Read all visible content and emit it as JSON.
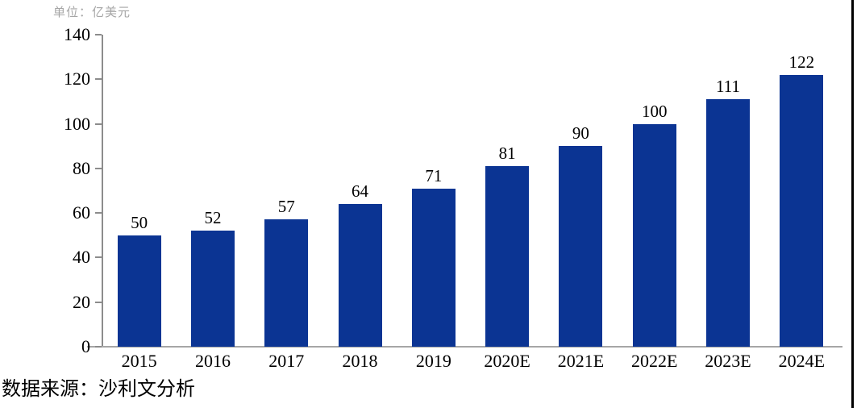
{
  "unit_label": "单位：亿美元",
  "source_label": "数据来源：沙利文分析",
  "colors": {
    "bar": "#0b3493",
    "axis": "#8c8c8c",
    "baseline": "#a6a6a6",
    "unit_text": "#a6a6a6",
    "label_text": "#000000",
    "right_edge": "#000000"
  },
  "chart_data": {
    "type": "bar",
    "title": "",
    "unit": "亿美元",
    "categories": [
      "2015",
      "2016",
      "2017",
      "2018",
      "2019",
      "2020E",
      "2021E",
      "2022E",
      "2023E",
      "2024E"
    ],
    "values": [
      50,
      52,
      57,
      64,
      71,
      81,
      90,
      100,
      111,
      122
    ],
    "data_labels": [
      50,
      52,
      57,
      64,
      71,
      81,
      90,
      100,
      111,
      122
    ],
    "xlabel": "",
    "ylabel": "",
    "ylim": [
      0,
      140
    ],
    "yticks": [
      0,
      20,
      40,
      60,
      80,
      100,
      120,
      140
    ],
    "grid": false,
    "legend": "none",
    "bar_color": "#0b3493"
  }
}
